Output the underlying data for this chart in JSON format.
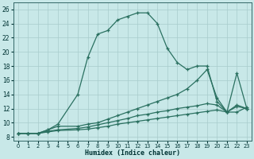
{
  "xlabel": "Humidex (Indice chaleur)",
  "bg_color": "#c8e8e8",
  "grid_color": "#a8cccc",
  "line_color": "#2a7060",
  "xlim": [
    -0.5,
    23.5
  ],
  "ylim": [
    7.5,
    27.0
  ],
  "xticks": [
    0,
    1,
    2,
    3,
    4,
    5,
    6,
    7,
    8,
    9,
    10,
    11,
    12,
    13,
    14,
    15,
    16,
    17,
    18,
    19,
    20,
    21,
    22,
    23
  ],
  "yticks": [
    8,
    10,
    12,
    14,
    16,
    18,
    20,
    22,
    24,
    26
  ],
  "series": [
    {
      "x": [
        0,
        1,
        2,
        3,
        4,
        6,
        7,
        8,
        9,
        10,
        11,
        12,
        13,
        14,
        15,
        16,
        17,
        18,
        19,
        20,
        21,
        22,
        23
      ],
      "y": [
        8.5,
        8.5,
        8.5,
        9.0,
        9.8,
        14.0,
        19.2,
        22.5,
        23.0,
        24.5,
        25.0,
        25.5,
        25.5,
        24.0,
        20.5,
        18.5,
        17.5,
        18.0,
        18.0,
        13.0,
        11.5,
        17.0,
        12.0
      ]
    },
    {
      "x": [
        0,
        1,
        2,
        3,
        4,
        6,
        7,
        8,
        9,
        10,
        11,
        12,
        13,
        14,
        15,
        16,
        17,
        18,
        19,
        20,
        21,
        22,
        23
      ],
      "y": [
        8.5,
        8.5,
        8.5,
        9.0,
        9.5,
        9.5,
        9.8,
        10.0,
        10.5,
        11.0,
        11.5,
        12.0,
        12.5,
        13.0,
        13.5,
        14.0,
        14.8,
        16.0,
        17.5,
        13.5,
        11.5,
        11.5,
        12.2
      ]
    },
    {
      "x": [
        0,
        1,
        2,
        3,
        4,
        6,
        7,
        8,
        9,
        10,
        11,
        12,
        13,
        14,
        15,
        16,
        17,
        18,
        19,
        20,
        21,
        22,
        23
      ],
      "y": [
        8.5,
        8.5,
        8.5,
        8.8,
        9.0,
        9.2,
        9.4,
        9.7,
        10.0,
        10.3,
        10.6,
        11.0,
        11.2,
        11.5,
        11.7,
        12.0,
        12.2,
        12.4,
        12.7,
        12.5,
        11.5,
        12.5,
        12.0
      ]
    },
    {
      "x": [
        0,
        1,
        2,
        3,
        4,
        6,
        7,
        8,
        9,
        10,
        11,
        12,
        13,
        14,
        15,
        16,
        17,
        18,
        19,
        20,
        21,
        22,
        23
      ],
      "y": [
        8.5,
        8.5,
        8.5,
        8.7,
        8.9,
        9.0,
        9.1,
        9.3,
        9.5,
        9.8,
        10.0,
        10.2,
        10.4,
        10.6,
        10.8,
        11.0,
        11.2,
        11.4,
        11.6,
        11.8,
        11.5,
        12.3,
        12.0
      ]
    }
  ]
}
